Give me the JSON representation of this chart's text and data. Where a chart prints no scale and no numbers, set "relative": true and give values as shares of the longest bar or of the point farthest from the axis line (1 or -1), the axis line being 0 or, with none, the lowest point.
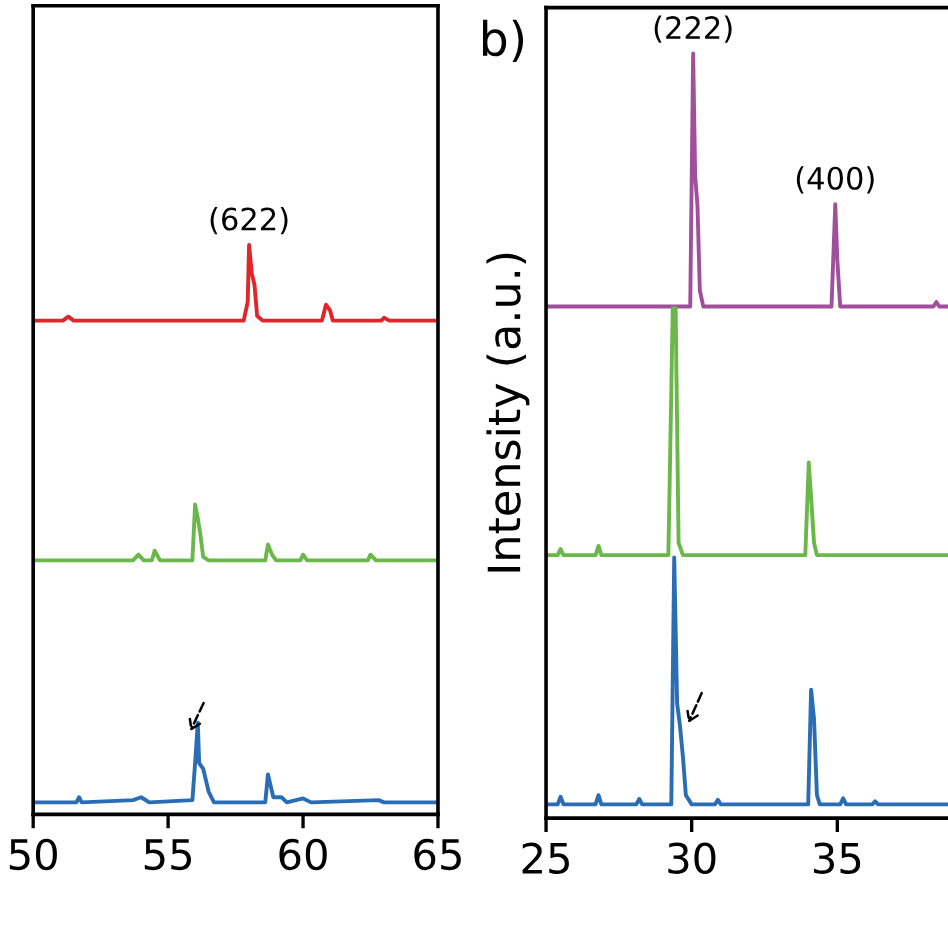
{
  "chart_data": [
    {
      "type": "line",
      "relative": true,
      "xlim": [
        50,
        65
      ],
      "xticks": [
        50,
        55,
        60,
        65
      ],
      "grid": false,
      "legend": false,
      "annotations": [
        {
          "text": "(622)",
          "x": 58.0,
          "y": 1.0
        }
      ],
      "series": [
        {
          "color": "#e0262b",
          "x": [
            50,
            51.1,
            51.3,
            51.5,
            57.8,
            57.95,
            58.0,
            58.1,
            58.2,
            58.3,
            58.5,
            60.7,
            60.85,
            61.0,
            61.1,
            62.9,
            63.0,
            63.2,
            65
          ],
          "values": [
            0.867,
            0.867,
            0.874,
            0.867,
            0.867,
            0.9,
            1.0,
            0.95,
            0.93,
            0.875,
            0.867,
            0.867,
            0.895,
            0.885,
            0.867,
            0.867,
            0.872,
            0.867,
            0.867
          ]
        },
        {
          "color": "#6ab84a",
          "x": [
            50,
            53.7,
            53.9,
            54.1,
            54.4,
            54.5,
            54.7,
            55.9,
            56.0,
            56.1,
            56.2,
            56.3,
            56.5,
            58.6,
            58.7,
            58.85,
            59.0,
            59.9,
            60.0,
            60.15,
            62.4,
            62.5,
            62.7,
            65
          ],
          "values": [
            0.446,
            0.446,
            0.456,
            0.446,
            0.446,
            0.463,
            0.446,
            0.446,
            0.544,
            0.52,
            0.49,
            0.452,
            0.446,
            0.446,
            0.474,
            0.456,
            0.446,
            0.446,
            0.456,
            0.446,
            0.446,
            0.456,
            0.446,
            0.446
          ]
        },
        {
          "color": "#2a6db5",
          "x": [
            50,
            51.6,
            51.7,
            51.8,
            53.7,
            54.0,
            54.3,
            55.9,
            56.0,
            56.1,
            56.15,
            56.3,
            56.5,
            56.7,
            58.6,
            58.7,
            58.8,
            58.9,
            59.2,
            59.4,
            60.0,
            60.3,
            62.8,
            63.0,
            65
          ],
          "values": [
            0.021,
            0.021,
            0.03,
            0.021,
            0.025,
            0.03,
            0.021,
            0.025,
            0.09,
            0.161,
            0.09,
            0.08,
            0.04,
            0.021,
            0.021,
            0.07,
            0.05,
            0.03,
            0.03,
            0.021,
            0.028,
            0.021,
            0.025,
            0.021,
            0.021
          ]
        }
      ]
    },
    {
      "type": "line",
      "relative": true,
      "xlim": [
        25,
        38.8
      ],
      "xticks": [
        25,
        30,
        35
      ],
      "grid": false,
      "legend": false,
      "ylabel": "Intensity (a.u.)",
      "annotations": [
        "b)",
        {
          "text": "(222)",
          "x": 30.05,
          "y": 1.0
        },
        {
          "text": "(400)",
          "x": 34.93,
          "y": 0.803
        }
      ],
      "series": [
        {
          "color": "#a0509a",
          "x": [
            25,
            29.95,
            30.05,
            30.12,
            30.2,
            30.28,
            30.4,
            34.8,
            34.93,
            35.0,
            35.1,
            38.3,
            38.4,
            38.5,
            38.8
          ],
          "values": [
            0.669,
            0.669,
            1.0,
            0.84,
            0.8,
            0.69,
            0.669,
            0.669,
            0.803,
            0.73,
            0.669,
            0.669,
            0.675,
            0.669,
            0.669
          ]
        },
        {
          "color": "#6ab84a",
          "x": [
            25,
            25.4,
            25.5,
            25.6,
            26.7,
            26.8,
            26.9,
            29.2,
            29.35,
            29.45,
            29.55,
            29.7,
            33.9,
            34.02,
            34.1,
            34.2,
            34.3,
            38.8
          ],
          "values": [
            0.344,
            0.344,
            0.352,
            0.344,
            0.344,
            0.356,
            0.344,
            0.344,
            0.667,
            0.667,
            0.36,
            0.344,
            0.344,
            0.465,
            0.42,
            0.36,
            0.344,
            0.344
          ]
        },
        {
          "color": "#2a6db5",
          "x": [
            25,
            25.4,
            25.5,
            25.6,
            26.7,
            26.8,
            26.9,
            28.1,
            28.2,
            28.3,
            29.3,
            29.4,
            29.5,
            29.6,
            29.7,
            29.8,
            30.0,
            30.8,
            30.9,
            31.0,
            34.0,
            34.1,
            34.2,
            34.3,
            34.4,
            35.1,
            35.2,
            35.3,
            36.2,
            36.3,
            36.4,
            38.8
          ],
          "values": [
            0.018,
            0.018,
            0.028,
            0.018,
            0.018,
            0.03,
            0.018,
            0.018,
            0.025,
            0.018,
            0.018,
            0.341,
            0.15,
            0.12,
            0.08,
            0.03,
            0.018,
            0.018,
            0.024,
            0.018,
            0.018,
            0.168,
            0.13,
            0.03,
            0.018,
            0.018,
            0.026,
            0.018,
            0.018,
            0.022,
            0.018,
            0.018
          ]
        }
      ]
    }
  ]
}
